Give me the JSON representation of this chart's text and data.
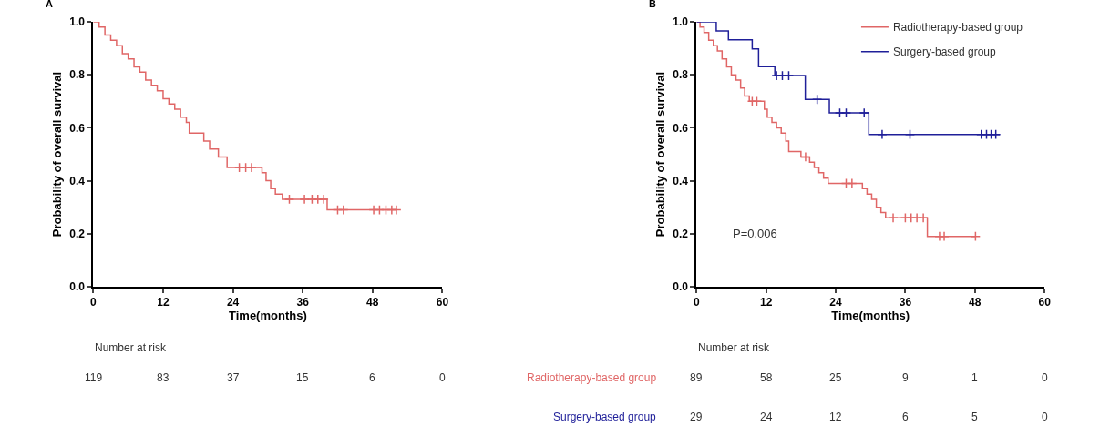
{
  "chart_data": [
    {
      "type": "step",
      "title": "A",
      "xlabel": "Time(months)",
      "ylabel": "Probability of overall survival",
      "xlim": [
        0,
        60
      ],
      "xticks": [
        0,
        12,
        24,
        36,
        48,
        60
      ],
      "ylim": [
        0,
        1
      ],
      "yticks": [
        {
          "value": 0,
          "label": "0.0"
        },
        {
          "value": 0.2,
          "label": "0.2"
        },
        {
          "value": 0.4,
          "label": "0.4"
        },
        {
          "value": 0.6,
          "label": "0.6"
        },
        {
          "value": 0.8,
          "label": "0.8"
        },
        {
          "value": 1,
          "label": "1.0"
        }
      ],
      "legend": false,
      "series": [
        {
          "color": "#e06666",
          "x": [
            0,
            1,
            2,
            3,
            4,
            5,
            6,
            7,
            8,
            9,
            10,
            11,
            12,
            13,
            14,
            15,
            16,
            16.5,
            19,
            20,
            21.5,
            23,
            29,
            29.7,
            30.5,
            31.3,
            32.5,
            40.2,
            52.2
          ],
          "values": [
            1.0,
            0.98,
            0.95,
            0.93,
            0.91,
            0.88,
            0.86,
            0.83,
            0.81,
            0.78,
            0.76,
            0.74,
            0.71,
            0.69,
            0.67,
            0.64,
            0.62,
            0.58,
            0.55,
            0.52,
            0.49,
            0.45,
            0.43,
            0.4,
            0.37,
            0.35,
            0.33,
            0.29,
            0.29
          ]
        },
        {
          "type": "scatter",
          "marker": "cross",
          "color": "#e06666",
          "x": [
            25.1,
            26.2,
            27.2,
            33.7,
            36.3,
            37.6,
            38.6,
            39.6,
            42,
            43,
            48.2,
            49.2,
            50.3,
            51.3,
            52.1
          ],
          "values": [
            0.45,
            0.45,
            0.45,
            0.33,
            0.33,
            0.33,
            0.33,
            0.33,
            0.29,
            0.29,
            0.29,
            0.29,
            0.29,
            0.29,
            0.29
          ]
        }
      ],
      "annotations": [
        "Number at risk",
        "119",
        "83",
        "37",
        "15",
        "6",
        "0"
      ]
    },
    {
      "type": "step",
      "title": "B",
      "xlabel": "Time(months)",
      "ylabel": "Probability of overall survival",
      "xlim": [
        0,
        60
      ],
      "xticks": [
        0,
        12,
        24,
        36,
        48,
        60
      ],
      "ylim": [
        0,
        1
      ],
      "yticks": [
        {
          "value": 0,
          "label": "0.0"
        },
        {
          "value": 0.2,
          "label": "0.2"
        },
        {
          "value": 0.4,
          "label": "0.4"
        },
        {
          "value": 0.6,
          "label": "0.6"
        },
        {
          "value": 0.8,
          "label": "0.8"
        },
        {
          "value": 1,
          "label": "1.0"
        }
      ],
      "legend": "top right",
      "series": [
        {
          "name": "Radiotherapy-based group",
          "color": "#e06666",
          "x": [
            0,
            0.6,
            1.3,
            2.1,
            2.9,
            3.6,
            4.4,
            5.2,
            6,
            6.8,
            7.6,
            8.3,
            9.1,
            11.7,
            12.2,
            13,
            13.8,
            14.6,
            15.4,
            15.9,
            18,
            19.5,
            20.3,
            21.1,
            21.9,
            22.7,
            28.6,
            29.4,
            30.2,
            31,
            31.8,
            32.6,
            39.8,
            48.1
          ],
          "values": [
            1.0,
            0.98,
            0.96,
            0.93,
            0.91,
            0.89,
            0.86,
            0.83,
            0.8,
            0.78,
            0.75,
            0.72,
            0.7,
            0.67,
            0.64,
            0.62,
            0.6,
            0.58,
            0.55,
            0.51,
            0.49,
            0.47,
            0.45,
            0.43,
            0.41,
            0.39,
            0.37,
            0.35,
            0.33,
            0.3,
            0.28,
            0.26,
            0.19,
            0.19
          ]
        },
        {
          "name": "Surgery-based group",
          "color": "#1f1f99",
          "x": [
            0,
            3.4,
            5.5,
            9.6,
            10.7,
            13.5,
            18.75,
            22.9,
            29.7,
            52.3
          ],
          "values": [
            1.0,
            0.966,
            0.932,
            0.898,
            0.831,
            0.797,
            0.707,
            0.656,
            0.575,
            0.575
          ]
        },
        {
          "type": "scatter",
          "marker": "cross",
          "color": "#e06666",
          "x": [
            9.6,
            10.4,
            18.8,
            25.8,
            26.8,
            33.9,
            36,
            37,
            38,
            39.1,
            41.9,
            42.7,
            48.1
          ],
          "values": [
            0.7,
            0.7,
            0.49,
            0.39,
            0.39,
            0.26,
            0.26,
            0.26,
            0.26,
            0.26,
            0.19,
            0.19,
            0.19
          ]
        },
        {
          "type": "scatter",
          "marker": "cross",
          "color": "#1f1f99",
          "x": [
            13.8,
            14.8,
            15.9,
            20.8,
            24.7,
            25.8,
            28.9,
            32,
            36.8,
            49.1,
            50,
            50.8,
            51.6
          ],
          "values": [
            0.797,
            0.797,
            0.797,
            0.707,
            0.656,
            0.656,
            0.656,
            0.575,
            0.575,
            0.575,
            0.575,
            0.575,
            0.575
          ]
        }
      ],
      "annotations": [
        "P=0.006",
        "Number at risk",
        "Radiotherapy-based group",
        "89",
        "58",
        "25",
        "9",
        "1",
        "0",
        "Surgery-based group",
        "29",
        "24",
        "12",
        "6",
        "5",
        "0"
      ]
    }
  ]
}
